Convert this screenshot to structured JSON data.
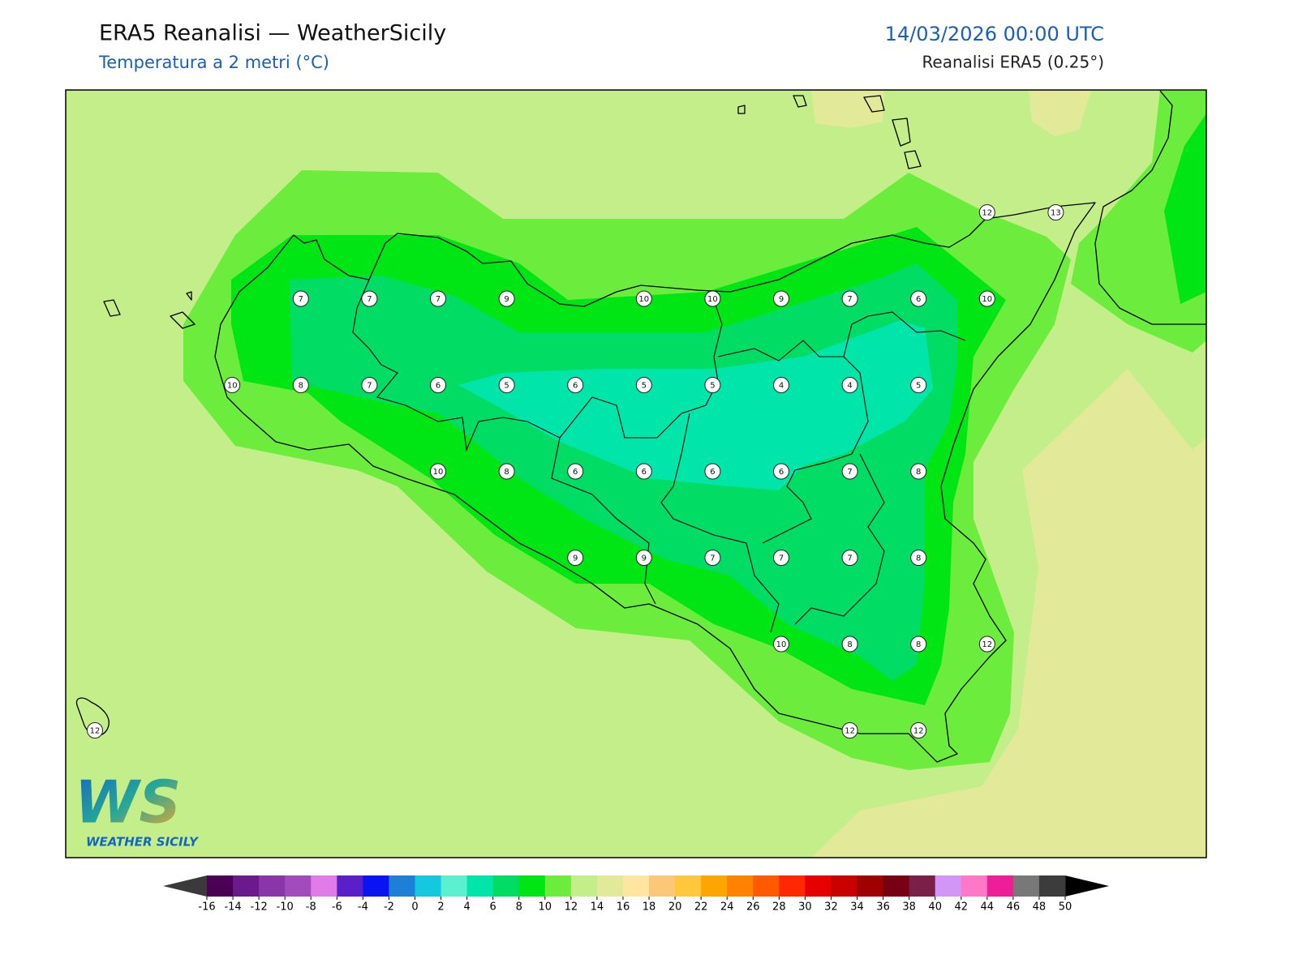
{
  "header": {
    "title": "ERA5 Reanalisi — WeatherSicily",
    "subtitle": "Temperatura a 2 metri (°C)",
    "datetime": "14/03/2026 00:00 UTC",
    "source": "Reanalisi ERA5 (0.25°)"
  },
  "temperature_grid": [
    [
      null,
      null,
      null,
      null,
      null,
      null,
      null,
      null,
      null,
      null,
      null,
      null,
      null,
      12,
      13
    ],
    [
      null,
      null,
      null,
      7,
      7,
      7,
      9,
      null,
      10,
      10,
      9,
      7,
      6,
      10,
      null
    ],
    [
      null,
      null,
      10,
      8,
      7,
      6,
      5,
      6,
      5,
      5,
      4,
      4,
      5,
      null,
      null
    ],
    [
      null,
      null,
      null,
      null,
      null,
      10,
      8,
      6,
      6,
      6,
      6,
      7,
      8,
      null,
      null
    ],
    [
      null,
      null,
      null,
      null,
      null,
      null,
      null,
      9,
      9,
      7,
      7,
      7,
      8,
      null,
      null
    ],
    [
      null,
      null,
      null,
      null,
      null,
      null,
      null,
      null,
      null,
      null,
      10,
      8,
      8,
      12,
      null
    ],
    [
      12,
      null,
      null,
      null,
      null,
      null,
      null,
      null,
      null,
      null,
      null,
      12,
      12,
      null,
      null
    ]
  ],
  "logo": {
    "mark": "WS",
    "name": "WEATHER SICILY"
  },
  "colorbar": {
    "ticks": [
      -16,
      -14,
      -12,
      -10,
      -8,
      -6,
      -4,
      -2,
      0,
      2,
      4,
      6,
      8,
      10,
      12,
      14,
      16,
      18,
      20,
      22,
      24,
      26,
      28,
      30,
      32,
      34,
      36,
      38,
      40,
      42,
      44,
      46,
      48,
      50
    ],
    "colors": [
      "#4b0055",
      "#6a1a8a",
      "#8a35a8",
      "#a24bbd",
      "#e07be8",
      "#5a1fc8",
      "#0a14f0",
      "#1e7fd8",
      "#14c8e0",
      "#5af0d0",
      "#00e6aa",
      "#00dc64",
      "#00e614",
      "#6cec3c",
      "#c4ee8a",
      "#e2ea9a",
      "#ffe6a0",
      "#fcc878",
      "#ffc83c",
      "#ffa500",
      "#ff8200",
      "#ff5a00",
      "#ff2800",
      "#e60000",
      "#c80000",
      "#a00000",
      "#780014",
      "#7a2048",
      "#d296f5",
      "#ff78c8",
      "#f01e96",
      "#787878",
      "#3c3c3c"
    ],
    "under_color": "#3a3a3a",
    "over_color": "#000000"
  }
}
